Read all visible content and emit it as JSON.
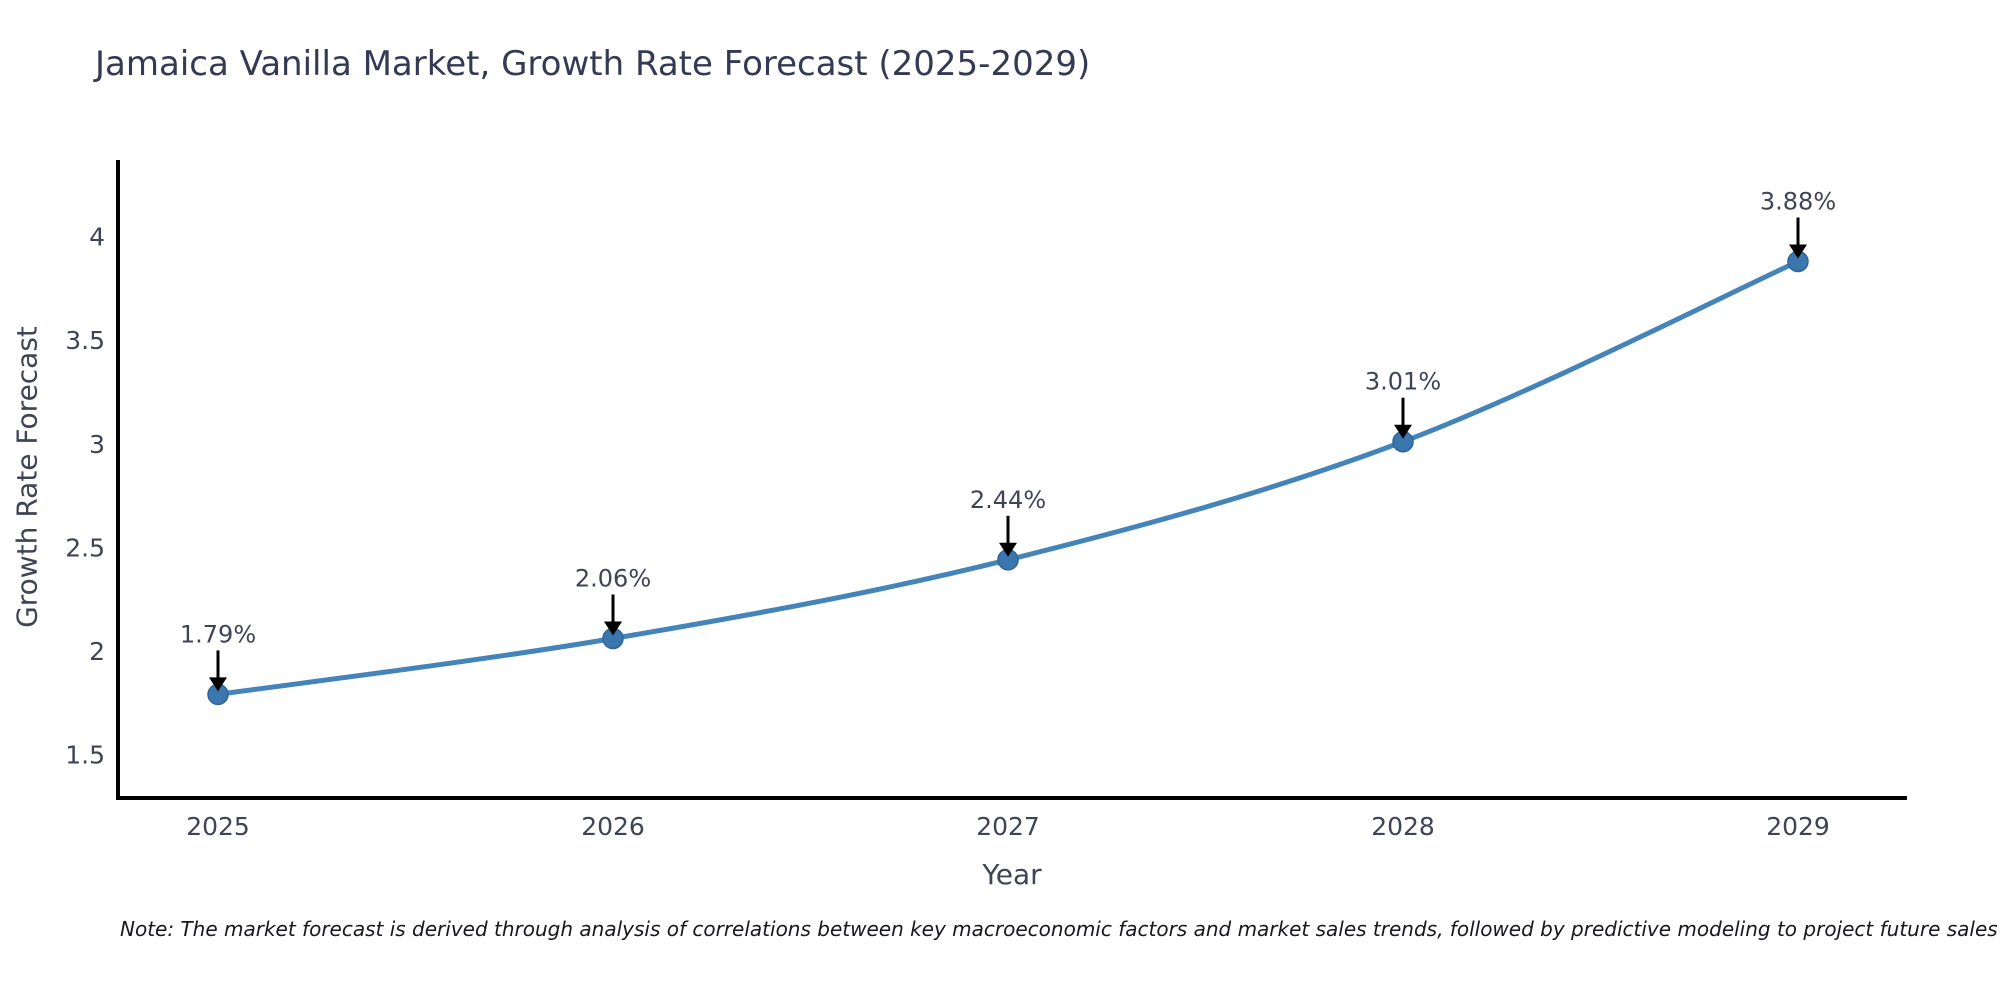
{
  "title": "Jamaica Vanilla Market, Growth Rate Forecast (2025-2029)",
  "footnote": "Note: The market forecast is derived through analysis of correlations between key macroeconomic factors and market sales trends, followed by predictive modeling to project future sales",
  "colors": {
    "background": "#ffffff",
    "line": "#4484b9",
    "marker_fill": "#3b77ae",
    "marker_edge": "#2f649c",
    "axis": "#000000",
    "tick_text": "#3f4455",
    "annotation_text": "#3f4455",
    "annotation_arrow": "#000000",
    "title_text": "#343a54"
  },
  "chart_data": {
    "type": "line",
    "title": "Jamaica Vanilla Market, Growth Rate Forecast (2025-2029)",
    "x": [
      2025,
      2026,
      2027,
      2028,
      2029
    ],
    "y": [
      1.79,
      2.06,
      2.44,
      3.01,
      3.88
    ],
    "point_labels": [
      "1.79%",
      "2.06%",
      "2.44%",
      "3.01%",
      "3.88%"
    ],
    "xlabel": "Year",
    "ylabel": "Growth Rate Forecast",
    "xticklabels": [
      "2025",
      "2026",
      "2027",
      "2028",
      "2029"
    ],
    "yticks": [
      1.5,
      2,
      2.5,
      3,
      3.5,
      4
    ],
    "yticklabels": [
      "1.5",
      "2",
      "2.5",
      "3",
      "3.5",
      "4"
    ],
    "ylim": [
      1.29,
      4.37
    ],
    "grid": false,
    "legend": false,
    "marker": "circle",
    "line_style": "smooth",
    "annotation_style": "value label above point with black down arrow"
  }
}
